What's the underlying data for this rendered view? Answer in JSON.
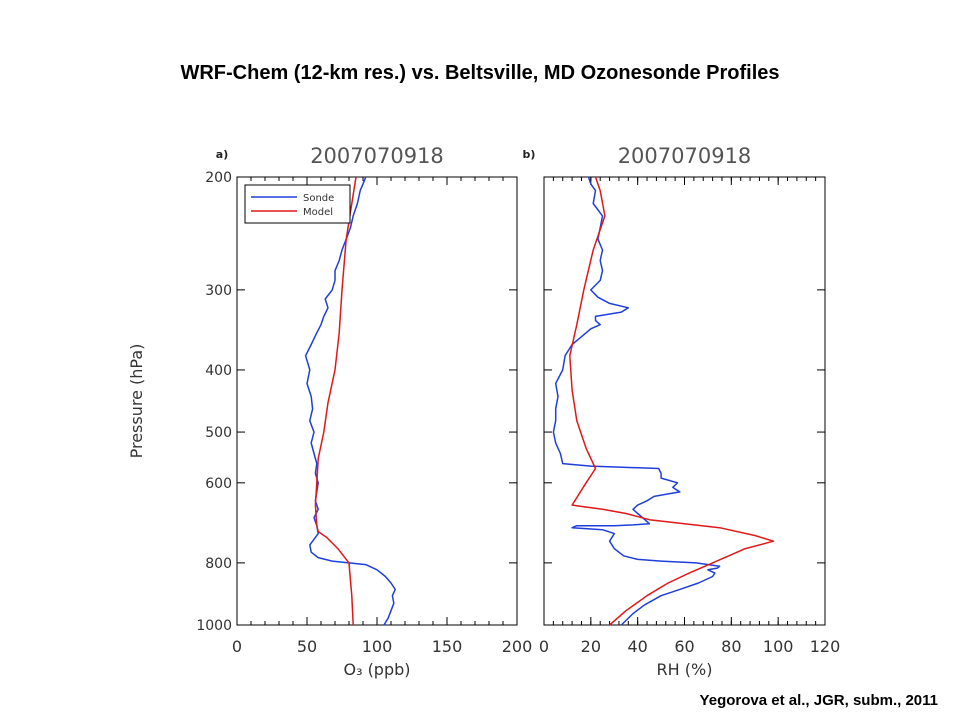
{
  "title": "WRF-Chem (12-km res.) vs. Beltsville, MD Ozonesonde Profiles",
  "citation": "Yegorova et al., JGR, subm., 2011",
  "chart_data": [
    {
      "type": "line",
      "panel_label": "a)",
      "title": "2007070918",
      "xlabel": "O₃ (ppb)",
      "ylabel": "Pressure (hPa)",
      "xlim": [
        0,
        200
      ],
      "ylim": [
        1000,
        200
      ],
      "y_scale": "log",
      "x_ticks": [
        0,
        50,
        100,
        150,
        200
      ],
      "y_ticks": [
        200,
        300,
        400,
        500,
        600,
        800,
        1000
      ],
      "grid": false,
      "legend": {
        "position": "top-left",
        "entries": [
          "Sonde",
          "Model"
        ]
      },
      "colors": {
        "Sonde": "#1f3fd8",
        "Model": "#e01818"
      },
      "series": [
        {
          "name": "Sonde",
          "points": [
            [
              105,
              1000
            ],
            [
              108,
              975
            ],
            [
              110,
              950
            ],
            [
              112,
              925
            ],
            [
              111,
              900
            ],
            [
              113,
              880
            ],
            [
              110,
              860
            ],
            [
              106,
              840
            ],
            [
              100,
              820
            ],
            [
              92,
              805
            ],
            [
              80,
              800
            ],
            [
              68,
              795
            ],
            [
              58,
              785
            ],
            [
              53,
              770
            ],
            [
              52,
              750
            ],
            [
              55,
              735
            ],
            [
              58,
              720
            ],
            [
              57,
              700
            ],
            [
              55,
              680
            ],
            [
              58,
              660
            ],
            [
              56,
              640
            ],
            [
              57,
              620
            ],
            [
              58,
              600
            ],
            [
              56,
              580
            ],
            [
              57,
              560
            ],
            [
              55,
              540
            ],
            [
              53,
              520
            ],
            [
              55,
              500
            ],
            [
              52,
              480
            ],
            [
              54,
              460
            ],
            [
              53,
              440
            ],
            [
              50,
              420
            ],
            [
              52,
              400
            ],
            [
              49,
              380
            ],
            [
              53,
              365
            ],
            [
              57,
              350
            ],
            [
              60,
              340
            ],
            [
              62,
              330
            ],
            [
              65,
              320
            ],
            [
              63,
              310
            ],
            [
              68,
              300
            ],
            [
              70,
              290
            ],
            [
              70,
              280
            ],
            [
              73,
              270
            ],
            [
              75,
              260
            ],
            [
              78,
              250
            ],
            [
              81,
              240
            ],
            [
              83,
              230
            ],
            [
              86,
              220
            ],
            [
              88,
              210
            ],
            [
              90,
              205
            ],
            [
              92,
              200
            ]
          ]
        },
        {
          "name": "Model",
          "points": [
            [
              83,
              1000
            ],
            [
              82,
              900
            ],
            [
              81,
              850
            ],
            [
              80,
              800
            ],
            [
              72,
              760
            ],
            [
              64,
              730
            ],
            [
              58,
              715
            ],
            [
              57,
              700
            ],
            [
              56,
              650
            ],
            [
              57,
              600
            ],
            [
              58,
              550
            ],
            [
              62,
              500
            ],
            [
              65,
              450
            ],
            [
              70,
              400
            ],
            [
              73,
              350
            ],
            [
              75,
              300
            ],
            [
              78,
              250
            ],
            [
              82,
              220
            ],
            [
              85,
              200
            ]
          ]
        }
      ]
    },
    {
      "type": "line",
      "panel_label": "b)",
      "title": "2007070918",
      "xlabel": "RH (%)",
      "ylabel": "",
      "xlim": [
        0,
        120
      ],
      "ylim": [
        1000,
        200
      ],
      "y_scale": "log",
      "x_ticks": [
        0,
        20,
        40,
        60,
        80,
        100,
        120
      ],
      "y_ticks": [
        200,
        300,
        400,
        500,
        600,
        800,
        1000
      ],
      "grid": false,
      "colors": {
        "Sonde": "#1f3fd8",
        "Model": "#e01818"
      },
      "series": [
        {
          "name": "Sonde",
          "points": [
            [
              33,
              1000
            ],
            [
              38,
              960
            ],
            [
              43,
              930
            ],
            [
              50,
              900
            ],
            [
              58,
              880
            ],
            [
              66,
              860
            ],
            [
              72,
              840
            ],
            [
              73,
              830
            ],
            [
              70,
              820
            ],
            [
              74,
              815
            ],
            [
              75,
              810
            ],
            [
              65,
              800
            ],
            [
              50,
              795
            ],
            [
              40,
              790
            ],
            [
              34,
              780
            ],
            [
              30,
              760
            ],
            [
              28,
              740
            ],
            [
              30,
              720
            ],
            [
              25,
              710
            ],
            [
              12,
              705
            ],
            [
              14,
              700
            ],
            [
              22,
              700
            ],
            [
              30,
              700
            ],
            [
              38,
              698
            ],
            [
              45,
              695
            ],
            [
              42,
              680
            ],
            [
              40,
              670
            ],
            [
              38,
              660
            ],
            [
              40,
              650
            ],
            [
              44,
              640
            ],
            [
              47,
              630
            ],
            [
              58,
              620
            ],
            [
              55,
              610
            ],
            [
              57,
              600
            ],
            [
              50,
              590
            ],
            [
              50,
              580
            ],
            [
              49,
              570
            ],
            [
              20,
              565
            ],
            [
              8,
              560
            ],
            [
              7,
              540
            ],
            [
              5,
              520
            ],
            [
              4,
              500
            ],
            [
              5,
              480
            ],
            [
              5,
              460
            ],
            [
              6,
              440
            ],
            [
              5,
              420
            ],
            [
              8,
              400
            ],
            [
              9,
              380
            ],
            [
              10,
              375
            ],
            [
              12,
              365
            ],
            [
              14,
              360
            ],
            [
              16,
              355
            ],
            [
              18,
              350
            ],
            [
              20,
              345
            ],
            [
              24,
              340
            ],
            [
              22,
              335
            ],
            [
              22,
              330
            ],
            [
              33,
              325
            ],
            [
              36,
              320
            ],
            [
              28,
              315
            ],
            [
              23,
              308
            ],
            [
              20,
              300
            ],
            [
              24,
              290
            ],
            [
              25,
              280
            ],
            [
              24,
              270
            ],
            [
              25,
              260
            ],
            [
              23,
              250
            ],
            [
              24,
              240
            ],
            [
              25,
              230
            ],
            [
              21,
              220
            ],
            [
              22,
              210
            ],
            [
              20,
              205
            ],
            [
              19,
              200
            ]
          ]
        },
        {
          "name": "Model",
          "points": [
            [
              28,
              1000
            ],
            [
              35,
              950
            ],
            [
              44,
              900
            ],
            [
              53,
              860
            ],
            [
              62,
              830
            ],
            [
              72,
              800
            ],
            [
              86,
              760
            ],
            [
              98,
              740
            ],
            [
              90,
              725
            ],
            [
              75,
              705
            ],
            [
              60,
              695
            ],
            [
              45,
              685
            ],
            [
              35,
              670
            ],
            [
              25,
              660
            ],
            [
              12,
              650
            ],
            [
              18,
              600
            ],
            [
              22,
              570
            ],
            [
              18,
              530
            ],
            [
              14,
              480
            ],
            [
              12,
              430
            ],
            [
              11,
              380
            ],
            [
              14,
              340
            ],
            [
              17,
              300
            ],
            [
              21,
              260
            ],
            [
              26,
              230
            ],
            [
              24,
              210
            ],
            [
              22,
              200
            ]
          ]
        }
      ]
    }
  ]
}
